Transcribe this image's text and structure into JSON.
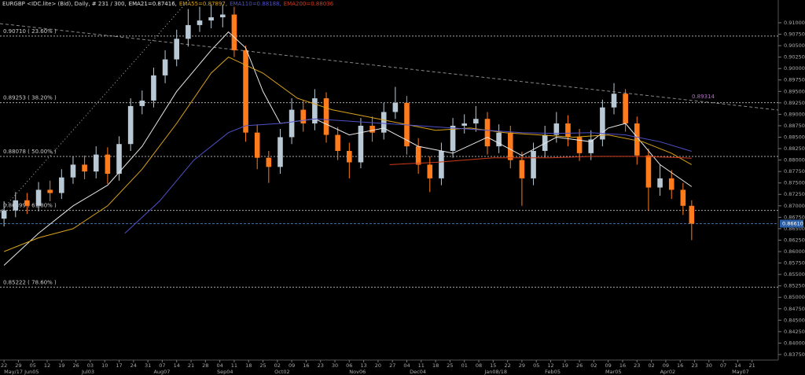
{
  "chart_data": {
    "type": "candlestick",
    "title": "EURGBP <IDC.lite> (Bid), Daily, # 231 / 300,",
    "up_color": "#b8c8d4",
    "down_color": "#ff7b1c",
    "x": [
      0,
      4,
      8,
      12,
      16,
      20,
      24,
      28,
      32,
      36,
      40,
      44,
      48,
      52,
      56,
      60,
      64,
      68,
      72,
      76,
      80,
      84,
      88,
      92,
      96,
      100,
      104,
      108,
      112,
      116,
      120,
      124,
      128,
      132,
      136,
      140,
      144,
      148,
      152,
      156,
      160,
      164,
      168,
      172,
      176,
      180,
      184,
      188,
      192,
      196,
      200,
      204,
      208,
      212,
      216,
      220,
      224,
      228,
      232,
      236,
      239
    ],
    "open": [
      0.8672,
      0.869,
      0.8712,
      0.87,
      0.8735,
      0.8728,
      0.8762,
      0.879,
      0.8775,
      0.8812,
      0.877,
      0.8835,
      0.8918,
      0.893,
      0.8985,
      0.902,
      0.9065,
      0.9095,
      0.9105,
      0.9112,
      0.9118,
      0.904,
      0.886,
      0.8805,
      0.8785,
      0.885,
      0.891,
      0.888,
      0.8935,
      0.8855,
      0.882,
      0.8795,
      0.8875,
      0.886,
      0.8905,
      0.8925,
      0.883,
      0.879,
      0.876,
      0.882,
      0.8875,
      0.888,
      0.889,
      0.883,
      0.886,
      0.88,
      0.876,
      0.882,
      0.8855,
      0.888,
      0.885,
      0.8815,
      0.8845,
      0.8915,
      0.8945,
      0.888,
      0.881,
      0.874,
      0.876,
      0.8735,
      0.87
    ],
    "high": [
      0.871,
      0.873,
      0.8728,
      0.8752,
      0.8755,
      0.878,
      0.8808,
      0.881,
      0.883,
      0.8828,
      0.8852,
      0.8935,
      0.8952,
      0.9002,
      0.904,
      0.9085,
      0.913,
      0.9135,
      0.914,
      0.914,
      0.9135,
      0.905,
      0.8878,
      0.882,
      0.8868,
      0.8935,
      0.893,
      0.8955,
      0.8948,
      0.8872,
      0.8838,
      0.8892,
      0.8895,
      0.8925,
      0.896,
      0.894,
      0.8848,
      0.8808,
      0.8838,
      0.8892,
      0.89,
      0.8918,
      0.8905,
      0.8878,
      0.8875,
      0.8818,
      0.8838,
      0.8875,
      0.8905,
      0.8898,
      0.8868,
      0.8865,
      0.8932,
      0.8968,
      0.8955,
      0.8895,
      0.8825,
      0.879,
      0.8778,
      0.875,
      0.8712
    ],
    "low": [
      0.8655,
      0.8675,
      0.8682,
      0.8688,
      0.871,
      0.8715,
      0.8748,
      0.8758,
      0.876,
      0.8748,
      0.8755,
      0.882,
      0.89,
      0.8915,
      0.8968,
      0.9005,
      0.9048,
      0.908,
      0.9088,
      0.909,
      0.9025,
      0.884,
      0.878,
      0.875,
      0.877,
      0.8835,
      0.8862,
      0.8865,
      0.8838,
      0.88,
      0.876,
      0.8782,
      0.884,
      0.8845,
      0.889,
      0.8812,
      0.877,
      0.873,
      0.8745,
      0.8805,
      0.8858,
      0.8862,
      0.8812,
      0.8815,
      0.8782,
      0.87,
      0.8745,
      0.8805,
      0.8838,
      0.883,
      0.8798,
      0.88,
      0.883,
      0.89,
      0.8862,
      0.879,
      0.869,
      0.8722,
      0.8715,
      0.868,
      0.8625
    ],
    "close": [
      0.869,
      0.8712,
      0.87,
      0.8735,
      0.8728,
      0.8762,
      0.879,
      0.8775,
      0.8812,
      0.877,
      0.8835,
      0.8918,
      0.893,
      0.8985,
      0.902,
      0.9065,
      0.9095,
      0.9105,
      0.9112,
      0.9118,
      0.904,
      0.886,
      0.8805,
      0.8785,
      0.885,
      0.891,
      0.888,
      0.8935,
      0.8855,
      0.882,
      0.8795,
      0.8875,
      0.886,
      0.8905,
      0.8925,
      0.883,
      0.879,
      0.876,
      0.882,
      0.8875,
      0.888,
      0.889,
      0.883,
      0.886,
      0.88,
      0.876,
      0.882,
      0.8855,
      0.888,
      0.885,
      0.8815,
      0.8845,
      0.8915,
      0.8945,
      0.888,
      0.881,
      0.874,
      0.876,
      0.8735,
      0.87,
      0.8661
    ],
    "overlays": [
      {
        "name": "EMA21=0.87416,",
        "color": "#e8e8e8",
        "x": [
          0,
          12,
          24,
          36,
          48,
          60,
          72,
          78,
          84,
          90,
          96,
          108,
          120,
          132,
          144,
          156,
          168,
          180,
          192,
          204,
          210,
          216,
          228,
          239
        ],
        "values": [
          0.857,
          0.864,
          0.87,
          0.8745,
          0.883,
          0.895,
          0.904,
          0.908,
          0.9045,
          0.895,
          0.888,
          0.889,
          0.8855,
          0.887,
          0.883,
          0.8815,
          0.885,
          0.881,
          0.885,
          0.884,
          0.887,
          0.888,
          0.879,
          0.8742
        ]
      },
      {
        "name": "EMA55=0.87897,",
        "color": "#d9a21b",
        "x": [
          0,
          12,
          24,
          36,
          48,
          60,
          72,
          78,
          90,
          102,
          114,
          126,
          138,
          150,
          162,
          174,
          186,
          198,
          210,
          222,
          232,
          239
        ],
        "values": [
          0.86,
          0.863,
          0.865,
          0.87,
          0.878,
          0.888,
          0.899,
          0.9025,
          0.899,
          0.8935,
          0.891,
          0.8895,
          0.888,
          0.8865,
          0.887,
          0.886,
          0.8855,
          0.885,
          0.8855,
          0.884,
          0.8815,
          0.879
        ]
      },
      {
        "name": "EMA110=0.88188,",
        "color": "#5050c8",
        "x": [
          42,
          54,
          66,
          78,
          84,
          96,
          108,
          120,
          132,
          144,
          156,
          168,
          180,
          192,
          204,
          216,
          228,
          239
        ],
        "values": [
          0.864,
          0.871,
          0.88,
          0.886,
          0.8875,
          0.888,
          0.889,
          0.8885,
          0.888,
          0.8875,
          0.887,
          0.8865,
          0.886,
          0.8858,
          0.886,
          0.8855,
          0.884,
          0.8819
        ]
      },
      {
        "name": "EMA200=0.88036",
        "color": "#d03a1c",
        "x": [
          134,
          150,
          170,
          190,
          205,
          220,
          232,
          239
        ],
        "values": [
          0.879,
          0.8795,
          0.8805,
          0.8805,
          0.8808,
          0.8808,
          0.8806,
          0.8804
        ]
      }
    ],
    "fib_levels": [
      {
        "value": 0.9071,
        "label": "0.90710 ( 23.60% )"
      },
      {
        "value": 0.89253,
        "label": "0.89253 ( 38.20% )"
      },
      {
        "value": 0.88078,
        "label": "0.88078 ( 50.00% )"
      },
      {
        "value": 0.86899,
        "label": "0.86899 ( 61.80% )"
      },
      {
        "value": 0.85222,
        "label": "0.85222 ( 78.60% )"
      }
    ],
    "trendline_label": "0.89314",
    "last_price": {
      "value": 0.8661,
      "label": "0.86610"
    },
    "ylim": [
      0.83629,
      0.91498
    ],
    "xlim": [
      -1.4,
      269.1
    ],
    "yticks": [
      {
        "value": 0.91,
        "label": "0.91000"
      },
      {
        "value": 0.9075,
        "label": "0.90750"
      },
      {
        "value": 0.905,
        "label": "0.90500"
      },
      {
        "value": 0.9025,
        "label": "0.90250"
      },
      {
        "value": 0.9,
        "label": "0.90000"
      },
      {
        "value": 0.8975,
        "label": "0.89750"
      },
      {
        "value": 0.895,
        "label": "0.89500"
      },
      {
        "value": 0.8925,
        "label": "0.89250"
      },
      {
        "value": 0.89,
        "label": "0.89000"
      },
      {
        "value": 0.8875,
        "label": "0.88750"
      },
      {
        "value": 0.885,
        "label": "0.88500"
      },
      {
        "value": 0.8825,
        "label": "0.88250"
      },
      {
        "value": 0.88,
        "label": "0.88000"
      },
      {
        "value": 0.8775,
        "label": "0.87750"
      },
      {
        "value": 0.875,
        "label": "0.87500"
      },
      {
        "value": 0.8725,
        "label": "0.87250"
      },
      {
        "value": 0.87,
        "label": "0.87000"
      },
      {
        "value": 0.8675,
        "label": "0.86750"
      },
      {
        "value": 0.865,
        "label": "0.86500"
      },
      {
        "value": 0.8625,
        "label": "0.86250"
      },
      {
        "value": 0.86,
        "label": "0.86000"
      },
      {
        "value": 0.8575,
        "label": "0.85750"
      },
      {
        "value": 0.855,
        "label": "0.85500"
      },
      {
        "value": 0.8525,
        "label": "0.85250"
      },
      {
        "value": 0.85,
        "label": "0.85000"
      },
      {
        "value": 0.8475,
        "label": "0.84750"
      },
      {
        "value": 0.845,
        "label": "0.84500"
      },
      {
        "value": 0.8425,
        "label": "0.84250"
      },
      {
        "value": 0.84,
        "label": "0.84000"
      },
      {
        "value": 0.8375,
        "label": "0.83750"
      }
    ],
    "xticks": [
      {
        "value": 0,
        "label": "22"
      },
      {
        "value": 5,
        "label": "29"
      },
      {
        "value": 10,
        "label": "05"
      },
      {
        "value": 15,
        "label": "12"
      },
      {
        "value": 20,
        "label": "19"
      },
      {
        "value": 25,
        "label": "26"
      },
      {
        "value": 30,
        "label": "03"
      },
      {
        "value": 35,
        "label": "10"
      },
      {
        "value": 40,
        "label": "17"
      },
      {
        "value": 45,
        "label": "24"
      },
      {
        "value": 50,
        "label": "31"
      },
      {
        "value": 55,
        "label": "07"
      },
      {
        "value": 60,
        "label": "14"
      },
      {
        "value": 65,
        "label": "21"
      },
      {
        "value": 70,
        "label": "28"
      },
      {
        "value": 75,
        "label": "04"
      },
      {
        "value": 80,
        "label": "11"
      },
      {
        "value": 85,
        "label": "18"
      },
      {
        "value": 90,
        "label": "25"
      },
      {
        "value": 95,
        "label": "02"
      },
      {
        "value": 100,
        "label": "09"
      },
      {
        "value": 105,
        "label": "16"
      },
      {
        "value": 110,
        "label": "23"
      },
      {
        "value": 115,
        "label": "30"
      },
      {
        "value": 120,
        "label": "06"
      },
      {
        "value": 125,
        "label": "13"
      },
      {
        "value": 130,
        "label": "20"
      },
      {
        "value": 135,
        "label": "27"
      },
      {
        "value": 140,
        "label": "04"
      },
      {
        "value": 145,
        "label": "11"
      },
      {
        "value": 150,
        "label": "18"
      },
      {
        "value": 155,
        "label": "25"
      },
      {
        "value": 160,
        "label": "01"
      },
      {
        "value": 165,
        "label": "08"
      },
      {
        "value": 170,
        "label": "15"
      },
      {
        "value": 175,
        "label": "22"
      },
      {
        "value": 180,
        "label": "29"
      },
      {
        "value": 185,
        "label": "05"
      },
      {
        "value": 190,
        "label": "12"
      },
      {
        "value": 195,
        "label": "19"
      },
      {
        "value": 200,
        "label": "26"
      },
      {
        "value": 205,
        "label": "02"
      },
      {
        "value": 210,
        "label": "09"
      },
      {
        "value": 215,
        "label": "16"
      },
      {
        "value": 220,
        "label": "23"
      },
      {
        "value": 225,
        "label": "02"
      },
      {
        "value": 230,
        "label": "09"
      },
      {
        "value": 235,
        "label": "16"
      },
      {
        "value": 240,
        "label": "23"
      },
      {
        "value": 245,
        "label": "30"
      },
      {
        "value": 250,
        "label": "07"
      },
      {
        "value": 255,
        "label": "14"
      },
      {
        "value": 260,
        "label": "21"
      }
    ],
    "month_ticks": [
      {
        "value": 0,
        "label": "May/17 Jun05"
      },
      {
        "value": 27,
        "label": "Jul03"
      },
      {
        "value": 52,
        "label": "Aug07"
      },
      {
        "value": 74,
        "label": "Sep04"
      },
      {
        "value": 94,
        "label": "Oct02"
      },
      {
        "value": 120,
        "label": "Nov06"
      },
      {
        "value": 141,
        "label": "Dec04"
      },
      {
        "value": 167,
        "label": "Jan08/18"
      },
      {
        "value": 188,
        "label": "Feb05"
      },
      {
        "value": 209,
        "label": "Mar05"
      },
      {
        "value": 228,
        "label": "Apr02"
      },
      {
        "value": 253,
        "label": "May07"
      }
    ]
  }
}
